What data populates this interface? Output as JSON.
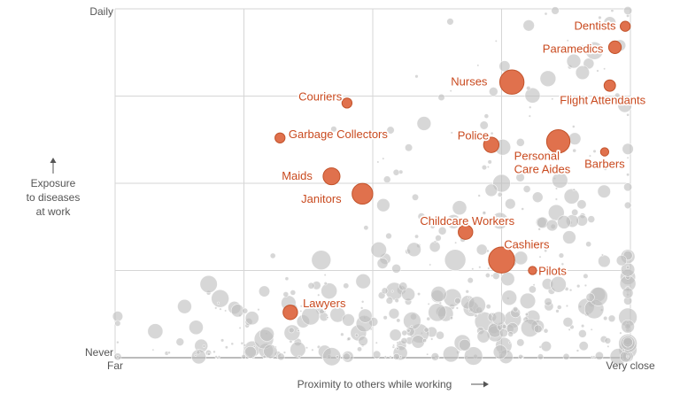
{
  "chart_data": {
    "type": "scatter",
    "xlabel": "Proximity to others while working",
    "ylabel_lines": [
      "Exposure",
      "to diseases",
      "at work"
    ],
    "x_ticks": [
      "Far",
      "Very close"
    ],
    "y_ticks": [
      "Never",
      "Daily"
    ],
    "xlim": [
      0,
      100
    ],
    "ylim": [
      0,
      100
    ],
    "x_grid": [
      0,
      25,
      50,
      75,
      100
    ],
    "y_grid": [
      0,
      25,
      50,
      75,
      100
    ],
    "grid": true,
    "colors": {
      "highlight": "#e0714d",
      "highlight_stroke": "#c2532b",
      "highlight_text": "#c94a1f",
      "other": "#bdbdbd",
      "grid": "#d6d6d6",
      "axis": "#777777"
    },
    "highlighted": [
      {
        "name": "Dentists",
        "x": 99,
        "y": 95,
        "size": 2,
        "label_anchor": "end",
        "label_dx": -5,
        "label_dy": 0
      },
      {
        "name": "Paramedics",
        "x": 97,
        "y": 89,
        "size": 4,
        "label_anchor": "end",
        "label_dx": -6,
        "label_dy": 2
      },
      {
        "name": "Nurses",
        "x": 77,
        "y": 79,
        "size": 22,
        "label_anchor": "end",
        "label_dx": -14,
        "label_dy": 0
      },
      {
        "name": "Flight Attendants",
        "x": 96,
        "y": 78,
        "size": 3,
        "label_anchor": "middle",
        "label_dx": -8,
        "label_dy": 17
      },
      {
        "name": "Couriers",
        "x": 45,
        "y": 73,
        "size": 2,
        "label_anchor": "end",
        "label_dx": 0,
        "label_dy": -7
      },
      {
        "name": "Garbage Collectors",
        "x": 32,
        "y": 63,
        "size": 2,
        "label_anchor": "start",
        "label_dx": 4,
        "label_dy": -4
      },
      {
        "name": "Police",
        "x": 73,
        "y": 61,
        "size": 7,
        "label_anchor": "end",
        "label_dx": 6,
        "label_dy": -10
      },
      {
        "name": "Personal Care Aides",
        "x": 86,
        "y": 62,
        "size": 20,
        "label_anchor": "start",
        "label_dx": -63,
        "label_dy": 17,
        "label_lines": [
          "Personal",
          "Care Aides"
        ]
      },
      {
        "name": "Barbers",
        "x": 95,
        "y": 59,
        "size": 1,
        "label_anchor": "middle",
        "label_dx": 0,
        "label_dy": 14
      },
      {
        "name": "Maids",
        "x": 42,
        "y": 52,
        "size": 9,
        "label_anchor": "end",
        "label_dx": -12,
        "label_dy": 0
      },
      {
        "name": "Janitors",
        "x": 48,
        "y": 47,
        "size": 15,
        "label_anchor": "end",
        "label_dx": -12,
        "label_dy": 6
      },
      {
        "name": "Childcare Workers",
        "x": 68,
        "y": 36,
        "size": 6,
        "label_anchor": "middle",
        "label_dx": 2,
        "label_dy": -12
      },
      {
        "name": "Cashiers",
        "x": 75,
        "y": 28,
        "size": 26,
        "label_anchor": "start",
        "label_dx": -12,
        "label_dy": -17
      },
      {
        "name": "Pilots",
        "x": 81,
        "y": 25,
        "size": 1,
        "label_anchor": "start",
        "label_dx": 2,
        "label_dy": 1
      },
      {
        "name": "Lawyers",
        "x": 34,
        "y": 13,
        "size": 6,
        "label_anchor": "start",
        "label_dx": 6,
        "label_dy": -10
      }
    ]
  }
}
